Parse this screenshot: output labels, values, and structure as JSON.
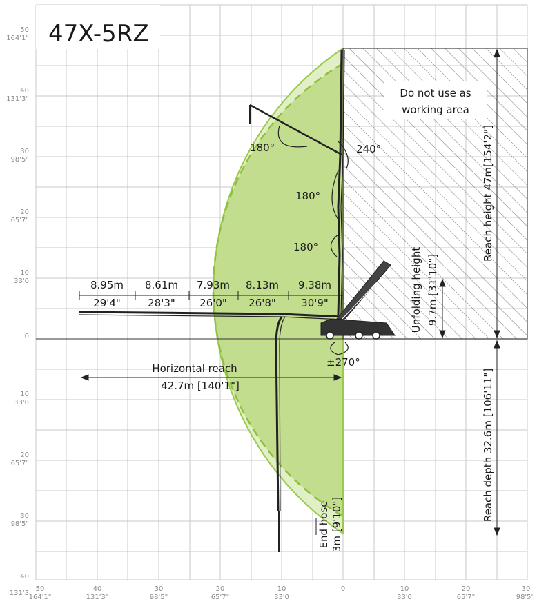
{
  "title": "47X-5RZ",
  "left_axis": [
    {
      "m": "50",
      "ft": "164'1\""
    },
    {
      "m": "40",
      "ft": "131'3\""
    },
    {
      "m": "30",
      "ft": "98'5\""
    },
    {
      "m": "20",
      "ft": "65'7\""
    },
    {
      "m": "10",
      "ft": "33'0"
    },
    {
      "m": "0",
      "ft": ""
    },
    {
      "m": "10",
      "ft": "33'0"
    },
    {
      "m": "20",
      "ft": "65'7\""
    },
    {
      "m": "30",
      "ft": "98'5\""
    },
    {
      "m": "40",
      "ft": "131'3"
    }
  ],
  "bottom_axis": [
    {
      "m": "50",
      "ft": "164'1\""
    },
    {
      "m": "40",
      "ft": "131'3\""
    },
    {
      "m": "30",
      "ft": "98'5\""
    },
    {
      "m": "20",
      "ft": "65'7\""
    },
    {
      "m": "10",
      "ft": "33'0"
    },
    {
      "m": "0",
      "ft": ""
    },
    {
      "m": "10",
      "ft": "33'0"
    },
    {
      "m": "20",
      "ft": "65'7\""
    },
    {
      "m": "30",
      "ft": "98'5'"
    }
  ],
  "boom_sections": [
    {
      "m": "8.95m",
      "ft": "29'4\""
    },
    {
      "m": "8.61m",
      "ft": "28'3\""
    },
    {
      "m": "7.93m",
      "ft": "26'0\""
    },
    {
      "m": "8.13m",
      "ft": "26'8\""
    },
    {
      "m": "9.38m",
      "ft": "30'9\""
    }
  ],
  "angles": {
    "a1": "180°",
    "a2": "240°",
    "a3": "180°",
    "a4": "180°",
    "a5": "±270°"
  },
  "horizontal_reach": {
    "label": "Horizontal reach",
    "value": "42.7m [140'1\"]"
  },
  "no_use_area": {
    "line1": "Do not use as",
    "line2": "working area"
  },
  "reach_height": "Reach height 47m[154'2\"]",
  "unfolding_height": {
    "line1": "Unfolding height",
    "line2": "9.7m [31'10\"]"
  },
  "reach_depth": "Reach depth 32.6m [106'11\"]",
  "end_hose": {
    "line1": "End hose",
    "line2": "3m [9'10\"]"
  },
  "colors": {
    "zone_fill": "#c3dd8f",
    "zone_light": "#e1efc6",
    "zone_edge": "#9bc94b",
    "grid": "#c8c8c8",
    "ink": "#1a1a1a",
    "tick": "#8a8a8a"
  }
}
